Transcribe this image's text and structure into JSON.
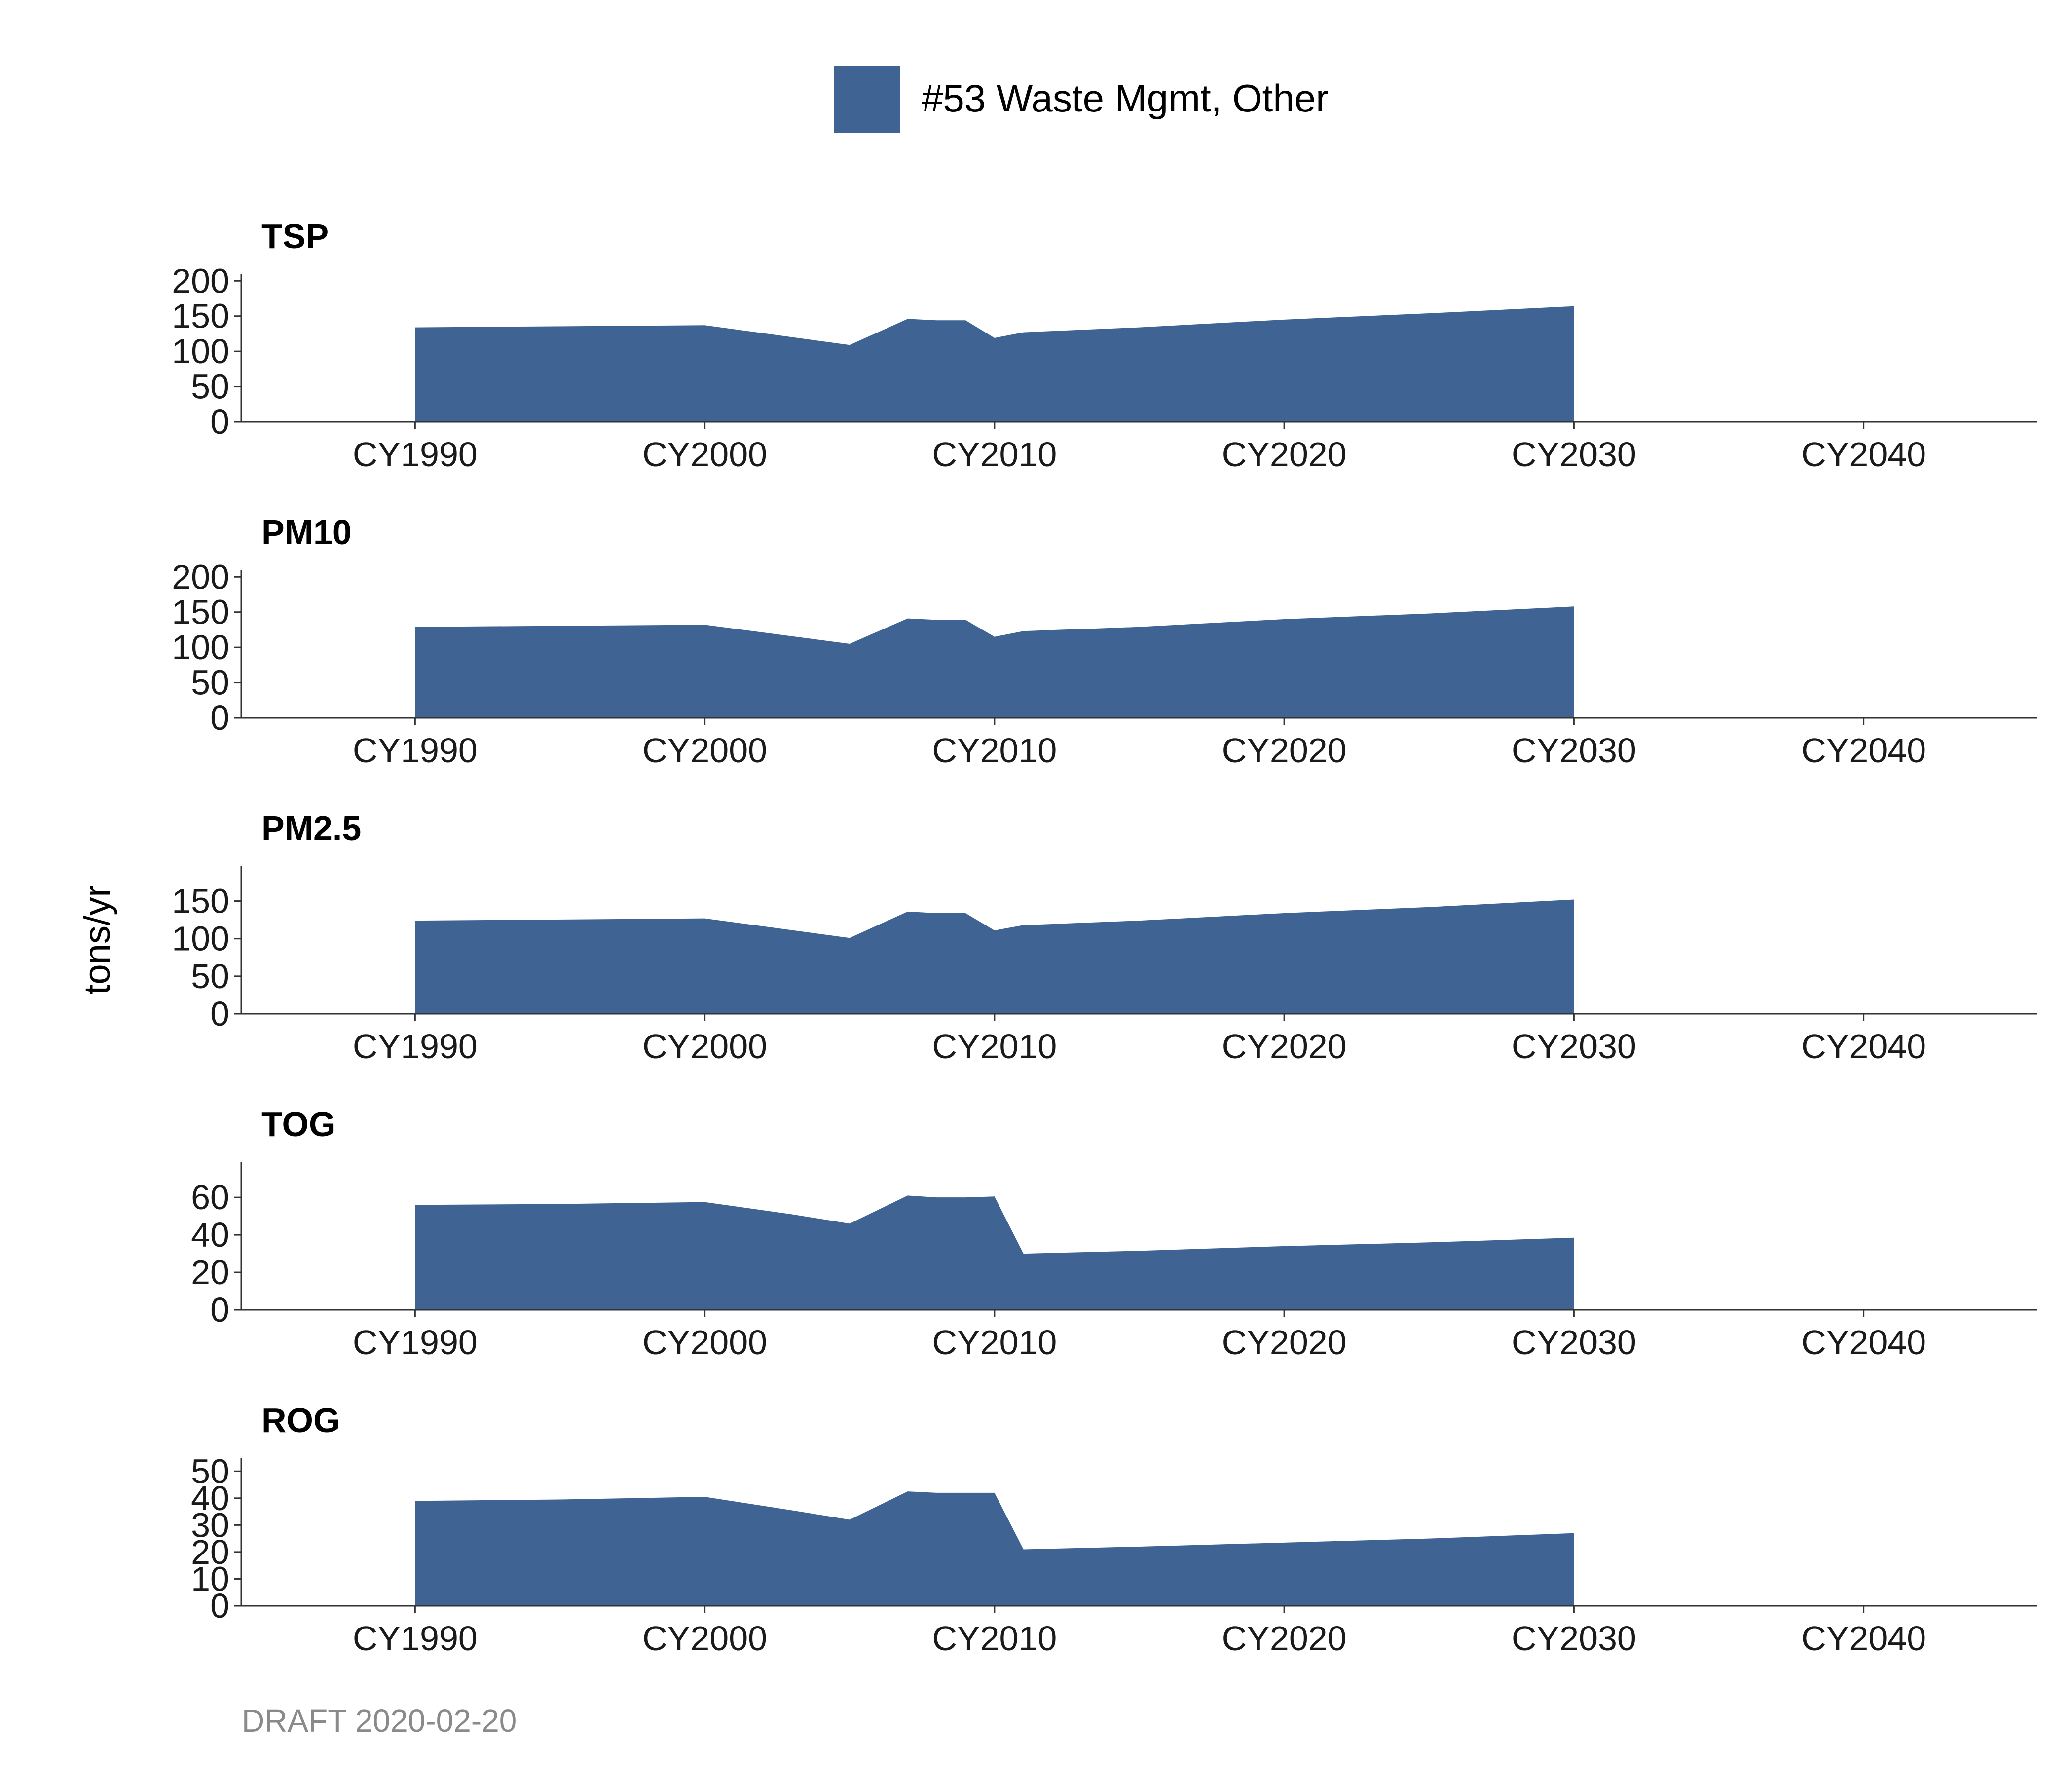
{
  "legend": {
    "label": "#53 Waste Mgmt, Other",
    "color": "#3F6494"
  },
  "ylabel": "tons/yr",
  "footer": "DRAFT 2020-02-20",
  "chart_data": {
    "type": "area",
    "series_name": "#53 Waste Mgmt, Other",
    "color": "#3F6494",
    "xlim": [
      1984,
      2046
    ],
    "x_ticks": [
      1990,
      2000,
      2010,
      2020,
      2030,
      2040
    ],
    "x_tick_labels": [
      "CY1990",
      "CY2000",
      "CY2010",
      "CY2020",
      "CY2030",
      "CY2040"
    ],
    "legend_position": "top",
    "grid": false,
    "panels": [
      {
        "title": "TSP",
        "ylim": [
          0,
          210
        ],
        "y_ticks": [
          0,
          50,
          100,
          150,
          200
        ],
        "x": [
          1990,
          2000,
          2005,
          2007,
          2008,
          2009,
          2010,
          2011,
          2015,
          2020,
          2025,
          2030
        ],
        "values": [
          134,
          137,
          109,
          146,
          144,
          144,
          119,
          127,
          134,
          145,
          154,
          164
        ]
      },
      {
        "title": "PM10",
        "ylim": [
          0,
          210
        ],
        "y_ticks": [
          0,
          50,
          100,
          150,
          200
        ],
        "x": [
          1990,
          2000,
          2005,
          2007,
          2008,
          2009,
          2010,
          2011,
          2015,
          2020,
          2025,
          2030
        ],
        "values": [
          129,
          132,
          105,
          141,
          139,
          139,
          115,
          123,
          129,
          140,
          148,
          158
        ]
      },
      {
        "title": "PM2.5",
        "ylim": [
          0,
          197
        ],
        "y_ticks": [
          0,
          50,
          100,
          150
        ],
        "x": [
          1990,
          2000,
          2005,
          2007,
          2008,
          2009,
          2010,
          2011,
          2015,
          2020,
          2025,
          2030
        ],
        "values": [
          124,
          127,
          101,
          136,
          134,
          134,
          111,
          118,
          124,
          134,
          142,
          152
        ]
      },
      {
        "title": "TOG",
        "ylim": [
          0,
          79
        ],
        "y_ticks": [
          0,
          20,
          40,
          60
        ],
        "x": [
          1990,
          1995,
          2000,
          2003,
          2005,
          2007,
          2008,
          2009,
          2010,
          2011,
          2015,
          2020,
          2025,
          2030
        ],
        "values": [
          56,
          56.5,
          57.5,
          51,
          46,
          61,
          60,
          60,
          60.5,
          30,
          31.5,
          34,
          36,
          38.5
        ]
      },
      {
        "title": "ROG",
        "ylim": [
          0,
          55
        ],
        "y_ticks": [
          0,
          10,
          20,
          30,
          40,
          50
        ],
        "y_tick_labels": [
          "0",
          "10",
          "20",
          "30",
          "40",
          "50"
        ],
        "x": [
          1990,
          1995,
          2000,
          2003,
          2005,
          2007,
          2008,
          2009,
          2010,
          2011,
          2015,
          2020,
          2025,
          2030
        ],
        "values": [
          39,
          39.5,
          40.5,
          35.5,
          32,
          42.5,
          42,
          42,
          42,
          21,
          22,
          23.5,
          25,
          27
        ]
      }
    ]
  }
}
